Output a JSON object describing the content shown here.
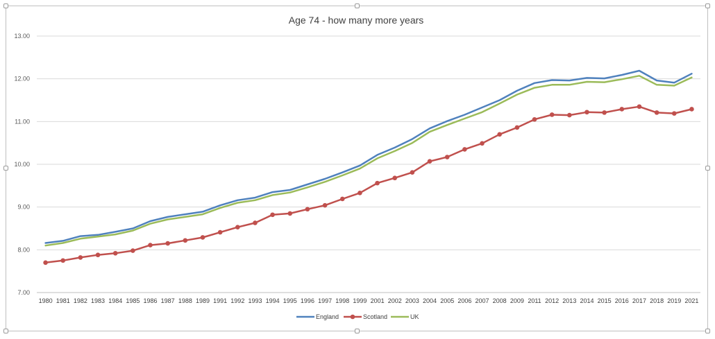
{
  "chart_data": {
    "type": "line",
    "title": "Age 74 - how many more years",
    "xlabel": "",
    "ylabel": "",
    "ylim": [
      7.0,
      13.0
    ],
    "yticks": [
      "7.00",
      "8.00",
      "9.00",
      "10.00",
      "11.00",
      "12.00",
      "13.00"
    ],
    "grid": true,
    "legend_position": "bottom",
    "categories": [
      "1980",
      "1981",
      "1982",
      "1983",
      "1984",
      "1985",
      "1986",
      "1987",
      "1988",
      "1989",
      "1991",
      "1992",
      "1993",
      "1994",
      "1995",
      "1996",
      "1997",
      "1998",
      "1999",
      "2001",
      "2002",
      "2003",
      "2004",
      "2005",
      "2006",
      "2007",
      "2008",
      "2009",
      "2011",
      "2012",
      "2013",
      "2014",
      "2015",
      "2016",
      "2017",
      "2018",
      "2019",
      "2021"
    ],
    "series": [
      {
        "name": "England",
        "color": "#4f81bd",
        "markers": false,
        "values": [
          8.16,
          8.21,
          8.32,
          8.35,
          8.42,
          8.5,
          8.67,
          8.77,
          8.83,
          8.89,
          9.04,
          9.16,
          9.22,
          9.35,
          9.4,
          9.53,
          9.66,
          9.81,
          9.97,
          10.22,
          10.39,
          10.59,
          10.84,
          11.01,
          11.16,
          11.33,
          11.5,
          11.72,
          11.9,
          11.97,
          11.96,
          12.02,
          12.01,
          12.09,
          12.19,
          11.96,
          11.91,
          12.12
        ]
      },
      {
        "name": "Scotland",
        "color": "#c0504d",
        "markers": true,
        "values": [
          7.7,
          7.75,
          7.82,
          7.88,
          7.92,
          7.98,
          8.11,
          8.15,
          8.22,
          8.29,
          8.41,
          8.53,
          8.63,
          8.82,
          8.85,
          8.95,
          9.04,
          9.19,
          9.33,
          9.56,
          9.68,
          9.81,
          10.07,
          10.17,
          10.35,
          10.49,
          10.7,
          10.86,
          11.05,
          11.16,
          11.15,
          11.22,
          11.21,
          11.29,
          11.35,
          11.21,
          11.19,
          11.29
        ]
      },
      {
        "name": "UK",
        "color": "#9bbb59",
        "markers": false,
        "values": [
          8.1,
          8.16,
          8.26,
          8.31,
          8.36,
          8.45,
          8.61,
          8.71,
          8.77,
          8.83,
          8.98,
          9.1,
          9.16,
          9.28,
          9.34,
          9.46,
          9.59,
          9.74,
          9.9,
          10.14,
          10.31,
          10.5,
          10.76,
          10.92,
          11.07,
          11.22,
          11.42,
          11.63,
          11.79,
          11.86,
          11.86,
          11.93,
          11.92,
          11.99,
          12.07,
          11.86,
          11.84,
          12.03
        ]
      }
    ]
  }
}
